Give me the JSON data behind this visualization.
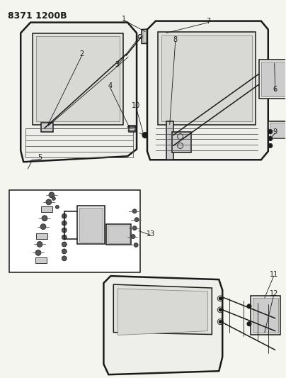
{
  "title": "8371 1200B",
  "bg": "#f5f5f0",
  "lw_thick": 1.8,
  "lw_med": 1.1,
  "lw_thin": 0.6,
  "label_fs": 7,
  "title_fs": 9,
  "black": "#1a1a1a",
  "gray": "#888888",
  "lgray": "#cccccc",
  "dgray": "#555555"
}
